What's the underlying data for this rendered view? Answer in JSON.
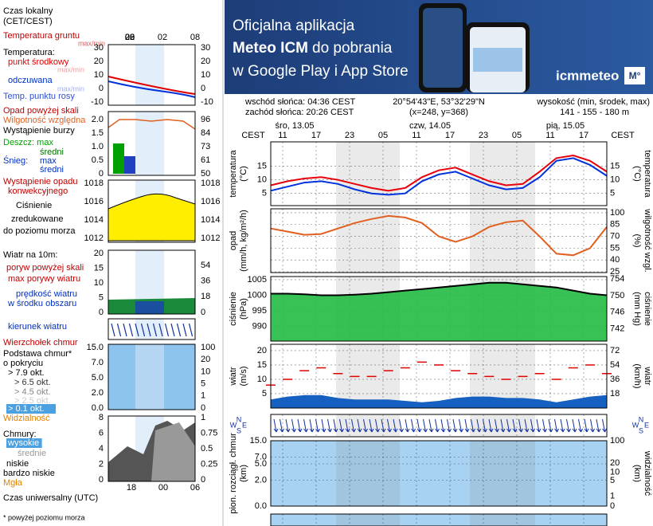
{
  "banner": {
    "line1": "Oficjalna aplikacja",
    "line2a": "Meteo ICM",
    "line2b": "do pobrania",
    "line3": "w Google Play i App Store",
    "logo": "icmmeteo",
    "badge": "M°"
  },
  "info": {
    "sunrise": "wschód słońca: 04:36 CEST",
    "sunset": "zachód słońca: 20:26 CEST",
    "coords": "20°54'43\"E, 53°32'29\"N",
    "grid": "(x=248, y=368)",
    "elevation_label": "wysokość (min, środek, max)",
    "elevation": "141 - 155 - 180 m"
  },
  "legend": [
    {
      "text": "Czas lokalny",
      "color": "#000000"
    },
    {
      "text": "(CET/CEST)",
      "color": "#000000"
    },
    {
      "text": "Temperatura gruntu",
      "color": "#c00000"
    },
    {
      "text": "max/min",
      "color": "#e06060"
    },
    {
      "text": "Temperatura:",
      "color": "#000000"
    },
    {
      "text": "punkt środkowy",
      "color": "#e00000"
    },
    {
      "text": "max/min",
      "color": "#f0a0a0"
    },
    {
      "text": "odczuwana",
      "color": "#0030c0"
    },
    {
      "text": "max/min",
      "color": "#a0b0f0"
    },
    {
      "text": "Temp. punktu rosy",
      "color": "#3050d0"
    },
    {
      "text": "Opad powyżej skali",
      "color": "#c00000"
    },
    {
      "text": "Wilgotność względna",
      "color": "#e06020"
    },
    {
      "text": "Wystąpienie burzy",
      "color": "#000000"
    },
    {
      "text": "Deszcz: max",
      "color": "#00a000"
    },
    {
      "text": "średni",
      "color": "#007000"
    },
    {
      "text": "Śnieg:",
      "color": "#0030c0"
    },
    {
      "text": "max",
      "color": "#0030c0"
    },
    {
      "text": "średni",
      "color": "#0030c0"
    },
    {
      "text": "Wystąpienie opadu",
      "color": "#c00000"
    },
    {
      "text": "konwekcyjnego",
      "color": "#c00000"
    },
    {
      "text": "Ciśnienie",
      "color": "#000000"
    },
    {
      "text": "zredukowane",
      "color": "#000000"
    },
    {
      "text": "do poziomu morza",
      "color": "#000000"
    },
    {
      "text": "Wiatr na 10m:",
      "color": "#000000"
    },
    {
      "text": "poryw powyżej skali",
      "color": "#c00000"
    },
    {
      "text": "max porywy wiatru",
      "color": "#c00000"
    },
    {
      "text": "prędkość wiatru",
      "color": "#0030c0"
    },
    {
      "text": "w środku obszaru",
      "color": "#0030c0"
    },
    {
      "text": "kierunek wiatru",
      "color": "#0030c0"
    },
    {
      "text": "Wierzchołek chmur",
      "color": "#c00000"
    },
    {
      "text": "Podstawa chmur*",
      "color": "#000000"
    },
    {
      "text": "o pokryciu",
      "color": "#000000"
    },
    {
      "text": "> 7.9 okt.",
      "color": "#000000"
    },
    {
      "text": "> 6.5 okt.",
      "color": "#333333"
    },
    {
      "text": "> 4.5 okt.",
      "color": "#888888"
    },
    {
      "text": "> 2.5 okt.",
      "color": "#cccccc"
    },
    {
      "text": "> 0.1 okt.",
      "color": "#ffffff",
      "highlight": "#4aa0e0"
    },
    {
      "text": "Widzialność",
      "color": "#e08000"
    },
    {
      "text": "Chmury:",
      "color": "#000000"
    },
    {
      "text": "wysokie",
      "color": "#ffffff",
      "highlight": "#4aa0e0"
    },
    {
      "text": "średnie",
      "color": "#999999"
    },
    {
      "text": "niskie",
      "color": "#000000"
    },
    {
      "text": "bardzo niskie",
      "color": "#000000"
    },
    {
      "text": "Mgła",
      "color": "#e08000"
    },
    {
      "text": "Czas uniwersalny (UTC)",
      "color": "#000000"
    },
    {
      "text": "* powyżej poziomu morza",
      "color": "#000000"
    }
  ],
  "legend_axes": {
    "top": [
      "20",
      "02",
      "08"
    ],
    "temp": [
      "30",
      "20",
      "10",
      "0",
      "-10"
    ],
    "humidity_left": [
      "2.0",
      "1.5",
      "1.0",
      "0.5",
      "0"
    ],
    "humidity_right": [
      "96",
      "84",
      "73",
      "61",
      "50"
    ],
    "pressure": [
      "1018",
      "1016",
      "1014",
      "1012"
    ],
    "wind_left": [
      "20",
      "15",
      "10",
      "5",
      "0"
    ],
    "wind_right": [
      "54",
      "36",
      "18",
      "0"
    ],
    "clouds_left": [
      "15.0",
      "7.0",
      "5.0",
      "2.0",
      "0.0"
    ],
    "clouds_right": [
      "100",
      "20",
      "10",
      "5",
      "1",
      "0"
    ],
    "cover_left": [
      "8",
      "6",
      "4",
      "2",
      "0"
    ],
    "cover_right": [
      "1",
      "0.75",
      "0.5",
      "0.25",
      "0"
    ],
    "bottom": [
      "18",
      "00",
      "06"
    ]
  },
  "time_axis": {
    "zone": "CEST",
    "dates": [
      "śro, 13.05",
      "czw, 14.05",
      "pią, 15.05"
    ],
    "hours": [
      "11",
      "17",
      "23",
      "05",
      "11",
      "17",
      "23",
      "05",
      "11",
      "17"
    ]
  },
  "compass": [
    "N",
    "W",
    "E",
    "S"
  ],
  "chart_data": [
    {
      "type": "line",
      "ylabel": "temperatura",
      "yunit": "(°C)",
      "y2label": "temperatura",
      "y2unit": "(°C)",
      "ylim": [
        0.5,
        24
      ],
      "yticks": [
        5,
        10,
        15
      ],
      "y2lim": [
        0.5,
        24
      ],
      "y2ticks": [
        5,
        10,
        15
      ],
      "grid": true,
      "series": [
        {
          "color": "#e8000b",
          "values": [
            8,
            9.5,
            10.5,
            11,
            10,
            8.5,
            7,
            6,
            7,
            11,
            13.5,
            14.5,
            12,
            9.5,
            8,
            8.5,
            13,
            18,
            19,
            17,
            13
          ]
        },
        {
          "color": "#0033dd",
          "values": [
            6,
            7.5,
            9,
            9.5,
            8.5,
            6.5,
            5,
            4.5,
            5,
            9.5,
            12,
            13,
            10.5,
            8,
            6.5,
            7,
            11,
            17,
            18,
            15.5,
            11.5
          ]
        }
      ]
    },
    {
      "type": "line",
      "ylabel": "opad",
      "yunit": "(mm/h, kg/m²/h)",
      "y2label": "wilgotność wzgl.",
      "y2unit": "(%)",
      "y2lim": [
        24,
        105
      ],
      "y2ticks": [
        100,
        85,
        70,
        55,
        40,
        25
      ],
      "grid": true,
      "series": [
        {
          "color": "#e06020",
          "axis": "y2",
          "values": [
            80,
            76,
            72,
            73,
            80,
            87,
            92,
            96,
            94,
            87,
            70,
            63,
            70,
            82,
            88,
            90,
            70,
            48,
            46,
            55,
            82
          ]
        }
      ]
    },
    {
      "type": "area",
      "ylabel": "ciśnienie",
      "yunit": "(hPa)",
      "y2label": "ciśnienie",
      "y2unit": "(mm Hg)",
      "ylim": [
        985.3,
        1006
      ],
      "yticks": [
        990,
        995,
        1000,
        1005
      ],
      "y2lim": [
        739.0,
        754.6
      ],
      "y2ticks": [
        742,
        746,
        750,
        754
      ],
      "color": "#22bb44",
      "grid": true,
      "series": [
        {
          "color": "#000000",
          "values": [
            1000.5,
            1000.5,
            1000.3,
            1000,
            1000,
            1000.2,
            1000.5,
            1001,
            1001.5,
            1002,
            1002.5,
            1003,
            1003.5,
            1004,
            1004,
            1003.5,
            1003,
            1002.5,
            1001.5,
            1000.5,
            1000
          ]
        }
      ]
    },
    {
      "type": "wind",
      "ylabel": "wiatr",
      "yunit": "(m/s)",
      "y2label": "wiatr",
      "y2unit": "(km/h)",
      "ylim": [
        0,
        22.2
      ],
      "yticks": [
        5,
        10,
        15,
        20
      ],
      "y2lim": [
        0,
        80
      ],
      "y2ticks": [
        18,
        36,
        54,
        72
      ],
      "grid": true,
      "series": [
        {
          "color": "#1560c0",
          "values": [
            3,
            4,
            4.5,
            4.5,
            3.5,
            3,
            3,
            3,
            2.5,
            2,
            2.5,
            3.5,
            4,
            4,
            3.5,
            3.5,
            3,
            2,
            3,
            4,
            4.5
          ]
        },
        {
          "color": "#e00000",
          "values": [
            8,
            10,
            13,
            14,
            12,
            11,
            11,
            13,
            14,
            16,
            15,
            13,
            12,
            11,
            10,
            11,
            12,
            10,
            14,
            15,
            12
          ]
        }
      ]
    },
    {
      "type": "clouds",
      "ylabel": "pion. rozciągł. chmur",
      "yunit": "(km)",
      "y2label": "widzialność",
      "y2unit": "(km)",
      "yscale": "log1p",
      "ylim": [
        0,
        15
      ],
      "yticks": [
        {
          "value": 15,
          "label": "15.0"
        },
        {
          "value": 7,
          "label": "7.0"
        },
        {
          "value": 5,
          "label": "5.0"
        },
        {
          "value": 2,
          "label": "2.0"
        },
        {
          "value": 0,
          "label": "0.0"
        }
      ],
      "y2lim": [
        0,
        100
      ],
      "y2ticks": [
        100,
        20,
        10,
        5,
        1,
        0
      ],
      "grid": true
    }
  ]
}
